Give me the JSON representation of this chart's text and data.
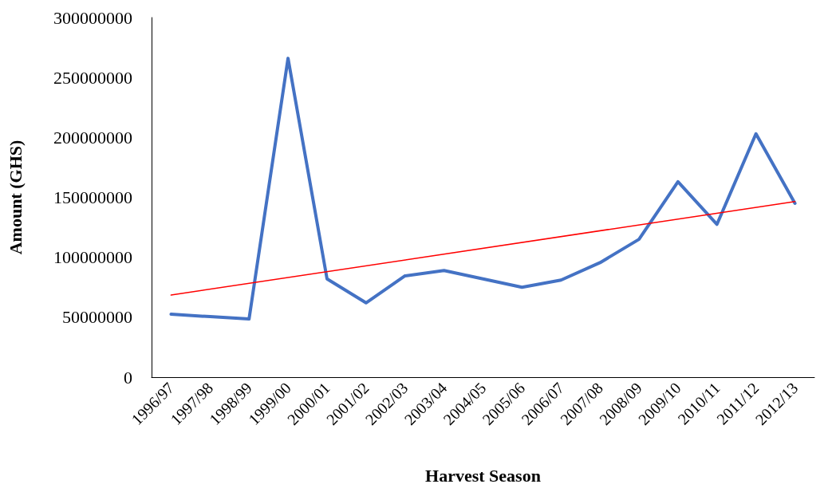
{
  "chart_data": {
    "type": "line",
    "xlabel": "Harvest Season",
    "ylabel": "Amount (GHS)",
    "categories": [
      "1996/97",
      "1997/98",
      "1998/99",
      "1999/00",
      "2000/01",
      "2001/02",
      "2002/03",
      "2003/04",
      "2004/05",
      "2005/06",
      "2006/07",
      "2007/08",
      "2008/09",
      "2009/10",
      "2010/11",
      "2011/12",
      "2012/13"
    ],
    "series": [
      {
        "color": "#4472c4",
        "values": [
          52500000,
          50500000,
          48500000,
          266000000,
          82000000,
          62000000,
          84500000,
          89000000,
          82000000,
          75000000,
          81000000,
          95500000,
          115000000,
          163000000,
          127500000,
          203000000,
          145000000
        ]
      },
      {
        "type": "line",
        "color": "#ff0000",
        "x": [
          "1996/97",
          "2012/13"
        ],
        "values": [
          68500000,
          146500000
        ]
      }
    ],
    "ylim": [
      0,
      300000000
    ],
    "yticks": [
      0,
      50000000,
      100000000,
      150000000,
      200000000,
      250000000,
      300000000
    ],
    "grid": false,
    "marker": "none",
    "line_style": "solid"
  }
}
